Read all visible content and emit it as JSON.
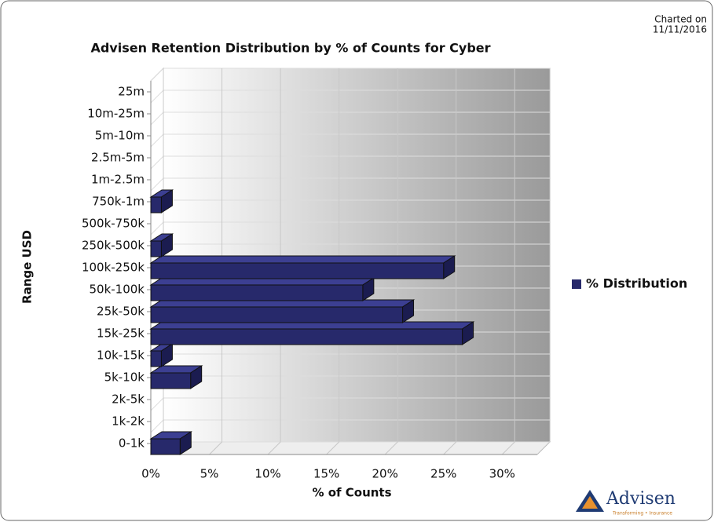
{
  "chart_data": {
    "type": "bar3d_horizontal",
    "title": "Advisen Retention Distribution by % of Counts for Cyber",
    "charted_on": [
      "Charted on",
      "11/11/2016"
    ],
    "xlabel": "% of Counts",
    "ylabel": "Range USD",
    "categories": [
      "0-1k",
      "1k-2k",
      "2k-5k",
      "5k-10k",
      "10k-15k",
      "15k-25k",
      "25k-50k",
      "50k-100k",
      "100k-250k",
      "250k-500k",
      "500k-750k",
      "750k-1m",
      "1m-2.5m",
      "2.5m-5m",
      "5m-10m",
      "10m-25m",
      "25m"
    ],
    "series": [
      {
        "name": "% Distribution",
        "color": "#27296b",
        "values": [
          2.5,
          0,
          0,
          3.4,
          0.9,
          26.6,
          21.5,
          18.1,
          25.0,
          0.9,
          0,
          0.9,
          0,
          0,
          0,
          0,
          0
        ]
      }
    ],
    "xlim": [
      0,
      33
    ],
    "xticks": [
      {
        "value": 0,
        "label": "0%"
      },
      {
        "value": 5,
        "label": "5%"
      },
      {
        "value": 10,
        "label": "10%"
      },
      {
        "value": 15,
        "label": "15%"
      },
      {
        "value": 20,
        "label": "20%"
      },
      {
        "value": 25,
        "label": "25%"
      },
      {
        "value": 30,
        "label": "30%"
      }
    ],
    "grid": true,
    "legend": "right"
  },
  "logo": {
    "name": "Advisen",
    "tagline": "Transforming • Insurance"
  }
}
